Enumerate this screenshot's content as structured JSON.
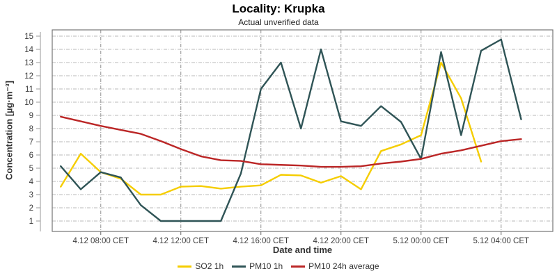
{
  "chart_data": {
    "type": "line",
    "title": "Locality: Krupka",
    "subtitle": "Actual unverified data",
    "xlabel": "Date and time",
    "ylabel": "Concentration [µg·m⁻³]",
    "ylim": [
      0.2,
      15.5
    ],
    "y_ticks": [
      1,
      2,
      3,
      4,
      5,
      6,
      7,
      8,
      9,
      10,
      11,
      12,
      13,
      14,
      15
    ],
    "grid": true,
    "legend_position": "bottom",
    "x_categories": [
      "4.12 06:00",
      "4.12 07:00",
      "4.12 08:00",
      "4.12 09:00",
      "4.12 10:00",
      "4.12 11:00",
      "4.12 12:00",
      "4.12 13:00",
      "4.12 14:00",
      "4.12 15:00",
      "4.12 16:00",
      "4.12 17:00",
      "4.12 18:00",
      "4.12 19:00",
      "4.12 20:00",
      "4.12 21:00",
      "4.12 22:00",
      "4.12 23:00",
      "5.12 00:00",
      "5.12 01:00",
      "5.12 02:00",
      "5.12 03:00",
      "5.12 04:00",
      "5.12 05:00"
    ],
    "x_ticks": [
      {
        "hour_index": 2,
        "label": "4.12 08:00 CET"
      },
      {
        "hour_index": 6,
        "label": "4.12 12:00 CET"
      },
      {
        "hour_index": 10,
        "label": "4.12 16:00 CET"
      },
      {
        "hour_index": 14,
        "label": "4.12 20:00 CET"
      },
      {
        "hour_index": 18,
        "label": "5.12 00:00 CET"
      },
      {
        "hour_index": 22,
        "label": "5.12 04:00 CET"
      }
    ],
    "series": [
      {
        "name": "SO2 1h",
        "color": "#f5cd00",
        "values": [
          3.6,
          6.1,
          4.7,
          4.2,
          3.0,
          3.0,
          3.6,
          3.65,
          3.45,
          3.6,
          3.7,
          4.5,
          4.45,
          3.9,
          4.4,
          3.4,
          6.3,
          6.8,
          7.5,
          13.0,
          10.3,
          5.5,
          null,
          null
        ]
      },
      {
        "name": "PM10 1h",
        "color": "#2f5456",
        "values": [
          5.15,
          3.4,
          4.7,
          4.3,
          2.2,
          1.0,
          1.0,
          1.0,
          1.0,
          4.6,
          11.0,
          13.0,
          8.0,
          14.0,
          8.55,
          8.2,
          9.7,
          8.5,
          5.7,
          13.8,
          7.5,
          13.9,
          14.75,
          8.7
        ]
      },
      {
        "name": "PM10 24h average",
        "color": "#bb2626",
        "values": [
          8.9,
          8.55,
          8.2,
          7.9,
          7.6,
          7.05,
          6.45,
          5.9,
          5.6,
          5.55,
          5.3,
          5.25,
          5.2,
          5.1,
          5.1,
          5.15,
          5.35,
          5.5,
          5.7,
          6.1,
          6.35,
          6.7,
          7.05,
          7.2
        ]
      }
    ]
  }
}
